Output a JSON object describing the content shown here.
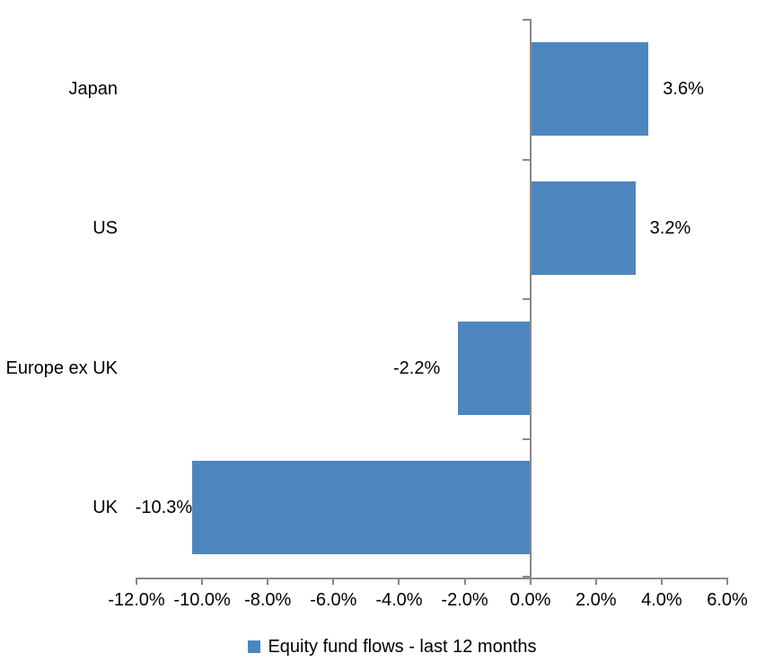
{
  "chart_data": {
    "type": "bar",
    "orientation": "horizontal",
    "title": "",
    "categories": [
      "Japan",
      "US",
      "Europe ex UK",
      "UK"
    ],
    "series": [
      {
        "name": "Equity fund flows - last 12 months",
        "values": [
          3.6,
          3.2,
          -2.2,
          -10.3
        ],
        "data_labels": [
          "3.6%",
          "3.2%",
          "-2.2%",
          "-10.3%"
        ]
      }
    ],
    "xlim": [
      -12,
      6
    ],
    "x_ticks": [
      -12,
      -10,
      -8,
      -6,
      -4,
      -2,
      0,
      2,
      4,
      6
    ],
    "x_tick_labels": [
      "-12.0%",
      "-10.0%",
      "-8.0%",
      "-6.0%",
      "-4.0%",
      "-2.0%",
      "0.0%",
      "2.0%",
      "4.0%",
      "6.0%"
    ],
    "grid": false,
    "legend": {
      "position": "bottom",
      "label": "Equity fund flows - last 12 months"
    },
    "colors": {
      "bar": "#4D86BE",
      "axis": "#898989",
      "text": "#000000",
      "background": "#FFFFFF"
    }
  }
}
